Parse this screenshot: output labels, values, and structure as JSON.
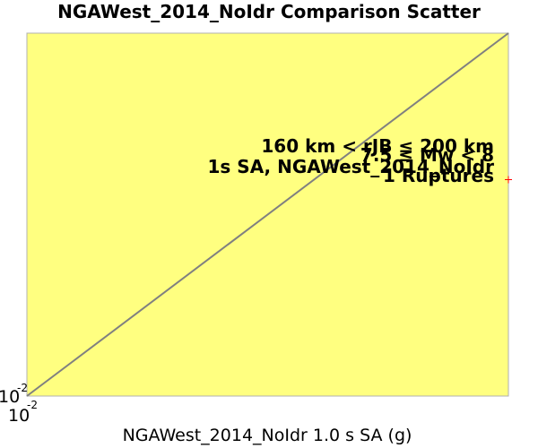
{
  "chart_data": {
    "type": "scatter",
    "title": "NGAWest_2014_NoIdr Comparison Scatter",
    "xlabel": "NGAWest_2014_NoIdr 1.0 s SA (g)",
    "ylabel": "",
    "x_scale": "log",
    "y_scale": "log",
    "xlim": [
      0.01,
      0.0132
    ],
    "ylim": [
      0.01,
      0.0132
    ],
    "x_tick": {
      "base": "10",
      "exponent": "-2"
    },
    "y_tick": {
      "base": "10",
      "exponent": "-2"
    },
    "plot_background": "#ffff80",
    "reference_line": {
      "type": "y=x",
      "color": "#808080"
    },
    "annotations": [
      "160 km < rJB ≤ 200 km",
      "7.5 ≤ Mw < 8",
      "1s SA, NGAWest_2014_NoIdr",
      "1 Ruptures"
    ],
    "series": [
      {
        "points": [
          {
            "x": 0.0132,
            "y": 0.0118
          }
        ],
        "color": "#ff0000",
        "marker": "+"
      }
    ],
    "grid": false,
    "legend": "none"
  }
}
